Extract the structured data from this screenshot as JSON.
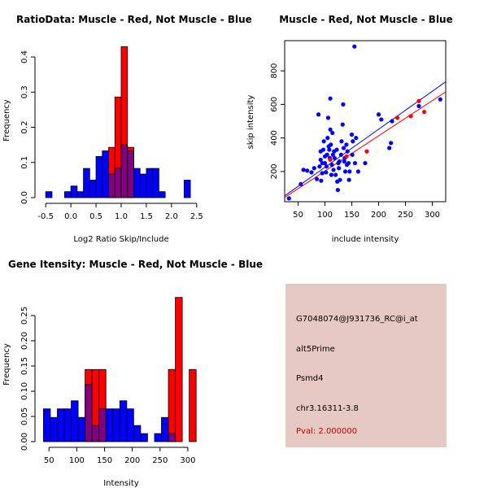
{
  "chart_data": [
    {
      "type": "bar",
      "title": "RatioData: Muscle - Red, Not Muscle - Blue",
      "xlabel": "Log2 Ratio Skip/Include",
      "ylabel": "Frequency",
      "xlim": [
        -0.6,
        2.6
      ],
      "ylim": [
        0,
        0.4
      ],
      "xticks": [
        "-0.5",
        "0.0",
        "0.5",
        "1.0",
        "1.5",
        "2.0",
        "2.5"
      ],
      "yticks": [
        "0.0",
        "0.1",
        "0.2",
        "0.3",
        "0.4"
      ],
      "bin_edges": [
        -0.5,
        -0.375,
        -0.25,
        -0.125,
        0.0,
        0.125,
        0.25,
        0.375,
        0.5,
        0.625,
        0.75,
        0.875,
        1.0,
        1.125,
        1.25,
        1.375,
        1.5,
        1.625,
        1.75,
        1.875,
        2.0,
        2.125,
        2.25,
        2.375,
        2.5
      ],
      "series": [
        {
          "name": "Muscle",
          "color": "#ff0000",
          "values": [
            0,
            0,
            0,
            0,
            0,
            0,
            0,
            0,
            0,
            0,
            0.143,
            0.286,
            0.429,
            0.143,
            0,
            0,
            0,
            0,
            0,
            0,
            0,
            0,
            0,
            0
          ]
        },
        {
          "name": "Not Muscle",
          "color": "#0000ff",
          "values": [
            0.017,
            0,
            0,
            0.017,
            0.033,
            0.017,
            0.083,
            0.05,
            0.117,
            0.133,
            0.067,
            0.083,
            0.15,
            0.133,
            0.083,
            0.067,
            0.083,
            0.083,
            0.017,
            0,
            0,
            0,
            0.05,
            0
          ]
        }
      ]
    },
    {
      "type": "scatter",
      "title": "Muscle - Red, Not Muscle - Blue",
      "xlabel": "include intensity",
      "ylabel": "skip intensity",
      "xlim": [
        25,
        325
      ],
      "ylim": [
        20,
        980
      ],
      "xticks": [
        "50",
        "100",
        "150",
        "200",
        "250",
        "300"
      ],
      "yticks": [
        "200",
        "400",
        "600",
        "800"
      ],
      "series": [
        {
          "name": "Not Muscle",
          "color": "#0000ff",
          "points": [
            [
              33,
              40
            ],
            [
              55,
              125
            ],
            [
              60,
              210
            ],
            [
              67,
              205
            ],
            [
              75,
              195
            ],
            [
              80,
              220
            ],
            [
              85,
              155
            ],
            [
              88,
              540
            ],
            [
              90,
              230
            ],
            [
              92,
              270
            ],
            [
              92,
              320
            ],
            [
              93,
              145
            ],
            [
              95,
              190
            ],
            [
              95,
              250
            ],
            [
              97,
              330
            ],
            [
              98,
              380
            ],
            [
              100,
              250
            ],
            [
              100,
              290
            ],
            [
              102,
              195
            ],
            [
              103,
              230
            ],
            [
              104,
              300
            ],
            [
              105,
              400
            ],
            [
              106,
              520
            ],
            [
              107,
              350
            ],
            [
              108,
              330
            ],
            [
              109,
              280
            ],
            [
              110,
              635
            ],
            [
              110,
              450
            ],
            [
              111,
              360
            ],
            [
              112,
              180
            ],
            [
              113,
              240
            ],
            [
              114,
              430
            ],
            [
              115,
              300
            ],
            [
              116,
              210
            ],
            [
              117,
              320
            ],
            [
              118,
              280
            ],
            [
              120,
              180
            ],
            [
              122,
              330
            ],
            [
              123,
              140
            ],
            [
              124,
              90
            ],
            [
              125,
              250
            ],
            [
              126,
              220
            ],
            [
              127,
              260
            ],
            [
              128,
              150
            ],
            [
              130,
              300
            ],
            [
              131,
              380
            ],
            [
              133,
              480
            ],
            [
              134,
              600
            ],
            [
              135,
              340
            ],
            [
              136,
              260
            ],
            [
              137,
              280
            ],
            [
              138,
              200
            ],
            [
              140,
              360
            ],
            [
              141,
              240
            ],
            [
              142,
              320
            ],
            [
              144,
              250
            ],
            [
              145,
              150
            ],
            [
              146,
              200
            ],
            [
              150,
              420
            ],
            [
              151,
              300
            ],
            [
              152,
              380
            ],
            [
              155,
              945
            ],
            [
              156,
              250
            ],
            [
              158,
              400
            ],
            [
              162,
              200
            ],
            [
              175,
              250
            ],
            [
              200,
              540
            ],
            [
              205,
              510
            ],
            [
              220,
              340
            ],
            [
              223,
              370
            ],
            [
              225,
              500
            ],
            [
              275,
              590
            ],
            [
              315,
              630
            ]
          ]
        },
        {
          "name": "Muscle",
          "color": "#ff0000",
          "points": [
            [
              110,
              270
            ],
            [
              140,
              290
            ],
            [
              178,
              320
            ],
            [
              235,
              520
            ],
            [
              260,
              530
            ],
            [
              275,
              620
            ],
            [
              285,
              555
            ]
          ]
        }
      ],
      "fit_lines": [
        {
          "name": "Not Muscle fit",
          "color": "#0000ff",
          "from": [
            25,
            55
          ],
          "to": [
            325,
            735
          ]
        },
        {
          "name": "Muscle fit",
          "color": "#ff0000",
          "from": [
            25,
            45
          ],
          "to": [
            325,
            675
          ]
        }
      ]
    },
    {
      "type": "bar",
      "title": "Gene Itensity: Muscle - Red, Not Muscle - Blue",
      "xlabel": "Intensity",
      "ylabel": "Frequency",
      "xlim": [
        35,
        325
      ],
      "ylim": [
        0,
        0.3
      ],
      "xticks": [
        "50",
        "100",
        "150",
        "200",
        "250",
        "300"
      ],
      "yticks": [
        "0.00",
        "0.05",
        "0.10",
        "0.15",
        "0.20",
        "0.25"
      ],
      "bin_edges": [
        40,
        52.5,
        65,
        77.5,
        90,
        102.5,
        115,
        127.5,
        140,
        152.5,
        165,
        177.5,
        190,
        202.5,
        215,
        227.5,
        240,
        252.5,
        265,
        277.5,
        290,
        302.5,
        315
      ],
      "series": [
        {
          "name": "Muscle",
          "color": "#ff0000",
          "values": [
            0,
            0,
            0,
            0,
            0,
            0,
            0.143,
            0.143,
            0.143,
            0,
            0,
            0,
            0,
            0,
            0,
            0,
            0,
            0,
            0.143,
            0.286,
            0,
            0.143
          ]
        },
        {
          "name": "Not Muscle",
          "color": "#0000ff",
          "values": [
            0.065,
            0.048,
            0.065,
            0.065,
            0.081,
            0.048,
            0.113,
            0.032,
            0.065,
            0.065,
            0.065,
            0.081,
            0.065,
            0.032,
            0.016,
            0,
            0.016,
            0.048,
            0.016,
            0,
            0,
            0
          ]
        }
      ]
    }
  ],
  "info": {
    "probe": "G7048074@J931736_RC@i_at",
    "event": "alt5Prime",
    "gene": "Psmd4",
    "location": "chr3.16311-3.8",
    "pval": "Pval: 2.000000"
  }
}
